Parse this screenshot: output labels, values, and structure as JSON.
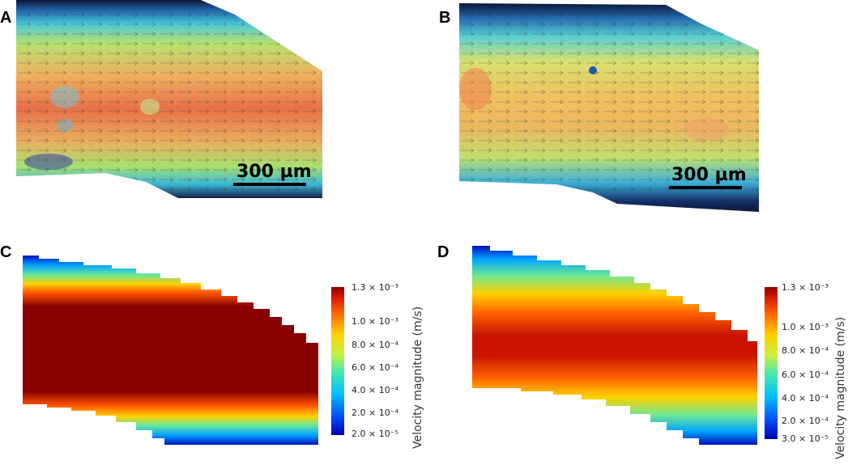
{
  "panels": {
    "a": {
      "label": "A",
      "scale_bar": "300 µm"
    },
    "b": {
      "label": "B",
      "scale_bar": "300 µm"
    },
    "c": {
      "label": "C",
      "colorbar": {
        "title": "Velocity magnitude (m/s)",
        "ticks": [
          "1.3 × 10⁻³",
          "1.0 × 10⁻³",
          "8.0 × 10⁻⁴",
          "6.0 × 10⁻⁴",
          "4.0 × 10⁻⁴",
          "2.0 × 10⁻⁴",
          "2.0 × 10⁻⁵"
        ]
      }
    },
    "d": {
      "label": "D",
      "colorbar": {
        "title": "Velocity magnitude (m/s)",
        "ticks": [
          "1.3 × 10⁻³",
          "1.0 × 10⁻³",
          "8.0 × 10⁻⁴",
          "6.0 × 10⁻⁴",
          "4.0 × 10⁻⁴",
          "2.0 × 10⁻⁴",
          "3.0 × 10⁻⁵"
        ]
      }
    }
  },
  "colors": {
    "colormap": [
      "#0000c8",
      "#0060ff",
      "#00c8ff",
      "#40e8a0",
      "#c8f040",
      "#ffd000",
      "#ff7000",
      "#e02000",
      "#800000"
    ]
  }
}
